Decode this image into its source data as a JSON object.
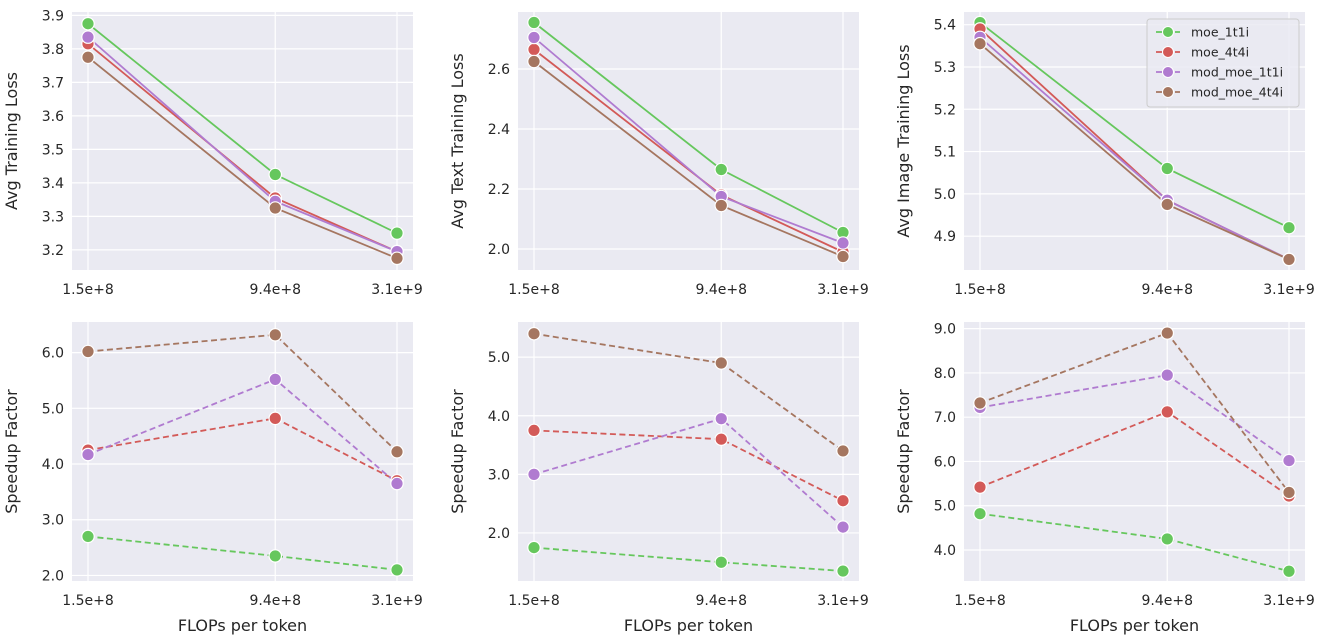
{
  "colors": {
    "moe_1t1i": "#66c75d",
    "moe_4t4i": "#d35a58",
    "mod_moe_1t1i": "#b07bd0",
    "mod_moe_4t4i": "#a57660",
    "panel_bg": "#eaeaf2",
    "grid": "#ffffff"
  },
  "legend": [
    "moe_1t1i",
    "moe_4t4i",
    "mod_moe_1t1i",
    "mod_moe_4t4i"
  ],
  "chart_data": [
    {
      "type": "line",
      "xscale": "log",
      "x": [
        150000000,
        940000000,
        3100000000
      ],
      "xticks": [
        "1.5e+8",
        "9.4e+8",
        "3.1e+9"
      ],
      "xlabel": "",
      "ylabel": "Avg Training Loss",
      "ylim": [
        3.14,
        3.91
      ],
      "yticks": [
        "3.2",
        "3.3",
        "3.4",
        "3.5",
        "3.6",
        "3.7",
        "3.8",
        "3.9"
      ],
      "yticks_values": [
        3.2,
        3.3,
        3.4,
        3.5,
        3.6,
        3.7,
        3.8,
        3.9
      ],
      "linestyle": "solid",
      "legend": false,
      "series": [
        {
          "name": "moe_1t1i",
          "values": [
            3.875,
            3.425,
            3.25
          ]
        },
        {
          "name": "moe_4t4i",
          "values": [
            3.815,
            3.355,
            3.195
          ]
        },
        {
          "name": "mod_moe_1t1i",
          "values": [
            3.835,
            3.345,
            3.195
          ]
        },
        {
          "name": "mod_moe_4t4i",
          "values": [
            3.775,
            3.325,
            3.175
          ]
        }
      ]
    },
    {
      "type": "line",
      "xscale": "log",
      "x": [
        150000000,
        940000000,
        3100000000
      ],
      "xticks": [
        "1.5e+8",
        "9.4e+8",
        "3.1e+9"
      ],
      "xlabel": "",
      "ylabel": "Avg Text Training Loss",
      "ylim": [
        1.93,
        2.79
      ],
      "yticks": [
        "2.0",
        "2.2",
        "2.4",
        "2.6"
      ],
      "yticks_values": [
        2.0,
        2.2,
        2.4,
        2.6
      ],
      "linestyle": "solid",
      "legend": false,
      "series": [
        {
          "name": "moe_1t1i",
          "values": [
            2.755,
            2.265,
            2.055
          ]
        },
        {
          "name": "moe_4t4i",
          "values": [
            2.665,
            2.18,
            1.99
          ]
        },
        {
          "name": "mod_moe_1t1i",
          "values": [
            2.705,
            2.175,
            2.02
          ]
        },
        {
          "name": "mod_moe_4t4i",
          "values": [
            2.625,
            2.145,
            1.975
          ]
        }
      ]
    },
    {
      "type": "line",
      "xscale": "log",
      "x": [
        150000000,
        940000000,
        3100000000
      ],
      "xticks": [
        "1.5e+8",
        "9.4e+8",
        "3.1e+9"
      ],
      "xlabel": "",
      "ylabel": "Avg Image Training Loss",
      "ylim": [
        4.82,
        5.43
      ],
      "yticks": [
        "4.9",
        "5.0",
        "5.1",
        "5.2",
        "5.3",
        "5.4"
      ],
      "yticks_values": [
        4.9,
        5.0,
        5.1,
        5.2,
        5.3,
        5.4
      ],
      "linestyle": "solid",
      "legend": true,
      "legend_position": "top-right",
      "series": [
        {
          "name": "moe_1t1i",
          "values": [
            5.405,
            5.06,
            4.92
          ]
        },
        {
          "name": "moe_4t4i",
          "values": [
            5.39,
            4.985,
            4.845
          ]
        },
        {
          "name": "mod_moe_1t1i",
          "values": [
            5.37,
            4.985,
            4.845
          ]
        },
        {
          "name": "mod_moe_4t4i",
          "values": [
            5.355,
            4.975,
            4.845
          ]
        }
      ]
    },
    {
      "type": "line",
      "xscale": "log",
      "x": [
        150000000,
        940000000,
        3100000000
      ],
      "xticks": [
        "1.5e+8",
        "9.4e+8",
        "3.1e+9"
      ],
      "xlabel": "FLOPs per token",
      "ylabel": "Speedup Factor",
      "ylim": [
        1.9,
        6.55
      ],
      "yticks": [
        "2.0",
        "3.0",
        "4.0",
        "5.0",
        "6.0"
      ],
      "yticks_values": [
        2.0,
        3.0,
        4.0,
        5.0,
        6.0
      ],
      "linestyle": "dashed",
      "legend": false,
      "series": [
        {
          "name": "moe_1t1i",
          "values": [
            2.7,
            2.35,
            2.1
          ]
        },
        {
          "name": "moe_4t4i",
          "values": [
            4.25,
            4.82,
            3.7
          ]
        },
        {
          "name": "mod_moe_1t1i",
          "values": [
            4.17,
            5.52,
            3.65
          ]
        },
        {
          "name": "mod_moe_4t4i",
          "values": [
            6.02,
            6.32,
            4.22
          ]
        }
      ]
    },
    {
      "type": "line",
      "xscale": "log",
      "x": [
        150000000,
        940000000,
        3100000000
      ],
      "xticks": [
        "1.5e+8",
        "9.4e+8",
        "3.1e+9"
      ],
      "xlabel": "FLOPs per token",
      "ylabel": "Speedup Factor",
      "ylim": [
        1.18,
        5.6
      ],
      "yticks": [
        "2.0",
        "3.0",
        "4.0",
        "5.0"
      ],
      "yticks_values": [
        2.0,
        3.0,
        4.0,
        5.0
      ],
      "linestyle": "dashed",
      "legend": false,
      "series": [
        {
          "name": "moe_1t1i",
          "values": [
            1.75,
            1.5,
            1.35
          ]
        },
        {
          "name": "moe_4t4i",
          "values": [
            3.75,
            3.6,
            2.55
          ]
        },
        {
          "name": "mod_moe_1t1i",
          "values": [
            3.0,
            3.95,
            2.1
          ]
        },
        {
          "name": "mod_moe_4t4i",
          "values": [
            5.4,
            4.9,
            3.4
          ]
        }
      ]
    },
    {
      "type": "line",
      "xscale": "log",
      "x": [
        150000000,
        940000000,
        3100000000
      ],
      "xticks": [
        "1.5e+8",
        "9.4e+8",
        "3.1e+9"
      ],
      "xlabel": "FLOPs per token",
      "ylabel": "Speedup Factor",
      "ylim": [
        3.3,
        9.15
      ],
      "yticks": [
        "4.0",
        "5.0",
        "6.0",
        "7.0",
        "8.0",
        "9.0"
      ],
      "yticks_values": [
        4.0,
        5.0,
        6.0,
        7.0,
        8.0,
        9.0
      ],
      "linestyle": "dashed",
      "legend": false,
      "series": [
        {
          "name": "moe_1t1i",
          "values": [
            4.82,
            4.25,
            3.52
          ]
        },
        {
          "name": "moe_4t4i",
          "values": [
            5.42,
            7.12,
            5.22
          ]
        },
        {
          "name": "mod_moe_1t1i",
          "values": [
            7.22,
            7.95,
            6.02
          ]
        },
        {
          "name": "mod_moe_4t4i",
          "values": [
            7.32,
            8.9,
            5.3
          ]
        }
      ]
    }
  ]
}
